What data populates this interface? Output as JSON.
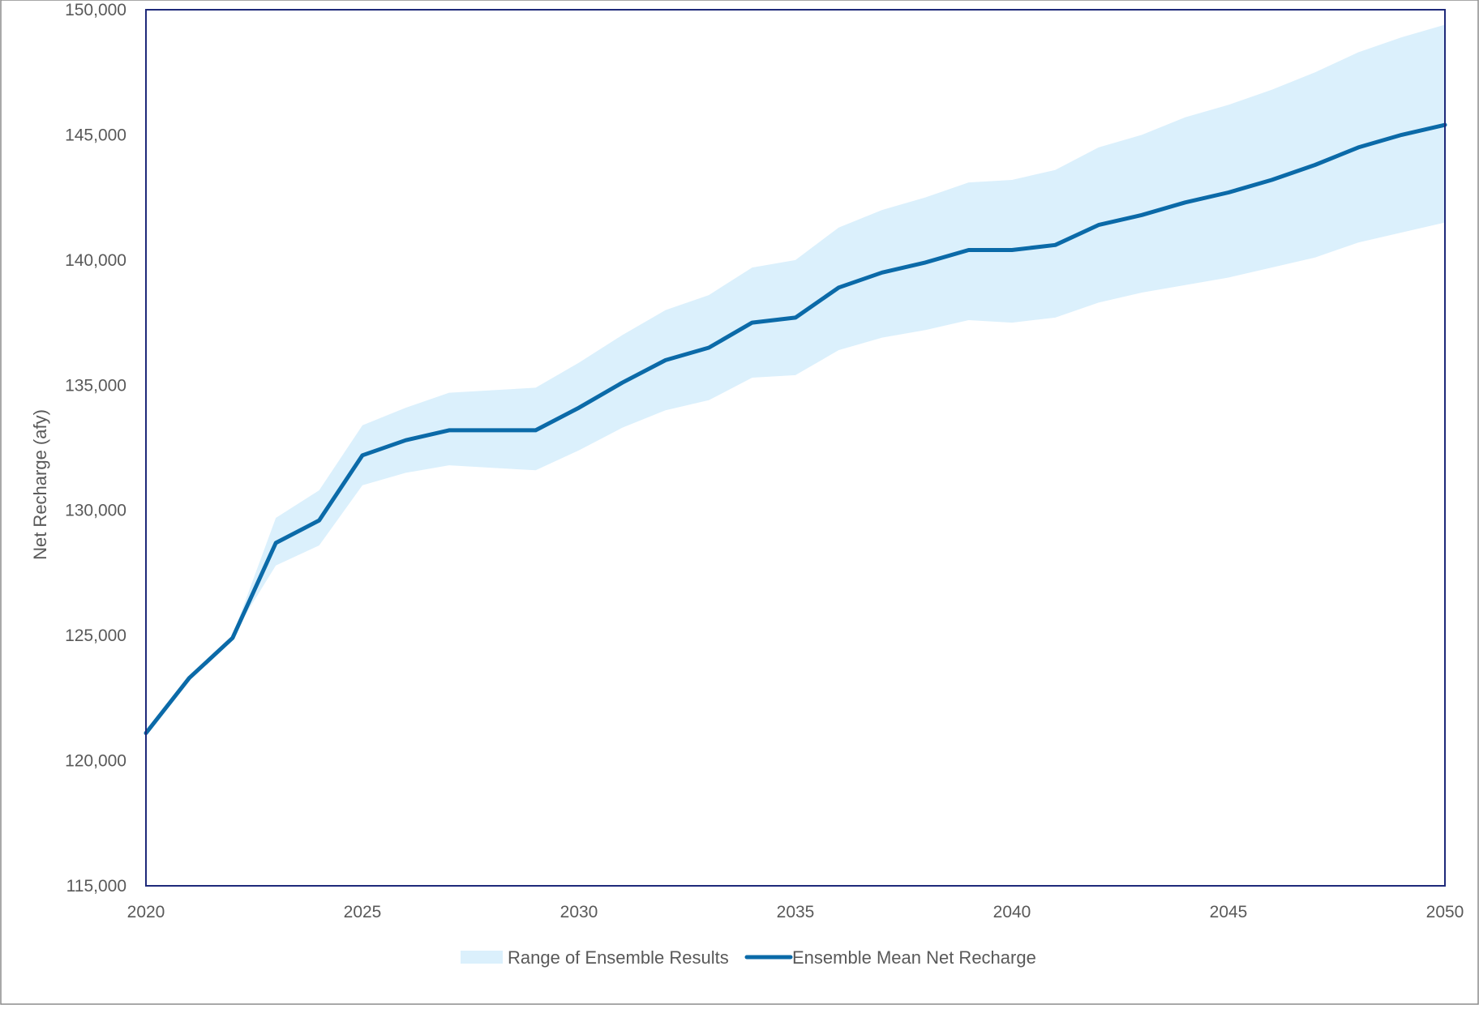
{
  "chart_data": {
    "type": "area",
    "title": "",
    "xlabel": "",
    "ylabel": "Net Recharge (afy)",
    "xlim": [
      2020,
      2050
    ],
    "ylim": [
      115000,
      150000
    ],
    "x_ticks": [
      "2020",
      "2025",
      "2030",
      "2035",
      "2040",
      "2045",
      "2050"
    ],
    "y_ticks": [
      "115,000",
      "120,000",
      "125,000",
      "130,000",
      "135,000",
      "140,000",
      "145,000",
      "150,000"
    ],
    "legend_position": "bottom",
    "grid": false,
    "colors": {
      "range_fill": "#dbf0fc",
      "mean_line": "#0b6aa8",
      "plot_border": "#1f2a7a",
      "text": "#595959"
    },
    "x": [
      2020,
      2021,
      2022,
      2023,
      2024,
      2025,
      2026,
      2027,
      2028,
      2029,
      2030,
      2031,
      2032,
      2033,
      2034,
      2035,
      2036,
      2037,
      2038,
      2039,
      2040,
      2041,
      2042,
      2043,
      2044,
      2045,
      2046,
      2047,
      2048,
      2049,
      2050
    ],
    "series": [
      {
        "name": "Range of Ensemble Results",
        "kind": "band",
        "upper": [
          121200,
          123300,
          125000,
          129700,
          130800,
          133400,
          134100,
          134700,
          134800,
          134900,
          135900,
          137000,
          138000,
          138600,
          139700,
          140000,
          141300,
          142000,
          142500,
          143100,
          143200,
          143600,
          144500,
          145000,
          145700,
          146200,
          146800,
          147500,
          148300,
          148900,
          149400
        ],
        "lower": [
          121200,
          123300,
          125000,
          127800,
          128600,
          131000,
          131500,
          131800,
          131700,
          131600,
          132400,
          133300,
          134000,
          134400,
          135300,
          135400,
          136400,
          136900,
          137200,
          137600,
          137500,
          137700,
          138300,
          138700,
          139000,
          139300,
          139700,
          140100,
          140700,
          141100,
          141500
        ]
      },
      {
        "name": "Ensemble Mean Net Recharge",
        "kind": "line",
        "values": [
          121100,
          123300,
          124900,
          128700,
          129600,
          132200,
          132800,
          133200,
          133200,
          133200,
          134100,
          135100,
          136000,
          136500,
          137500,
          137700,
          138900,
          139500,
          139900,
          140400,
          140400,
          140600,
          141400,
          141800,
          142300,
          142700,
          143200,
          143800,
          144500,
          145000,
          145400
        ]
      }
    ]
  }
}
